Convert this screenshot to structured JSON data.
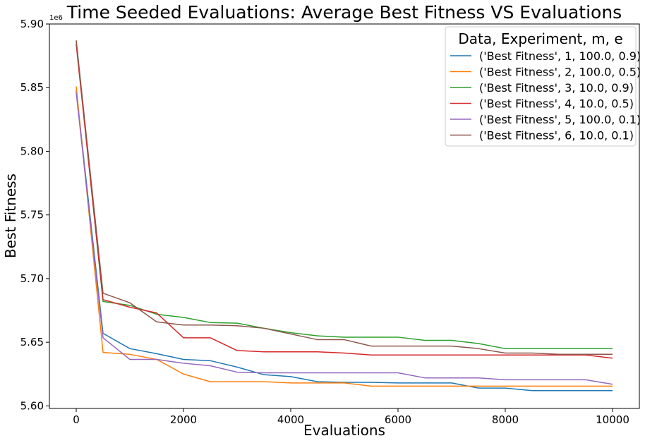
{
  "chart_data": {
    "type": "line",
    "title": "Time Seeded Evaluations: Average Best Fitness VS Evaluations",
    "xlabel": "Evaluations",
    "ylabel": "Best Fitness",
    "y_offset_label": "1e6",
    "xlim": [
      -500,
      10500
    ],
    "ylim": [
      5.598,
      5.9
    ],
    "x_ticks": [
      0,
      2000,
      4000,
      6000,
      8000,
      10000
    ],
    "x_tick_labels": [
      "0",
      "2000",
      "4000",
      "6000",
      "8000",
      "10000"
    ],
    "y_ticks": [
      5.6,
      5.65,
      5.7,
      5.75,
      5.8,
      5.85,
      5.9
    ],
    "y_tick_labels": [
      "5.60",
      "5.65",
      "5.70",
      "5.75",
      "5.80",
      "5.85",
      "5.90"
    ],
    "grid": false,
    "legend": {
      "title": "Data, Experiment, m, e",
      "placement": "top-right"
    },
    "x": [
      0,
      500,
      1000,
      1500,
      2000,
      2500,
      3000,
      3500,
      4000,
      4500,
      5000,
      5500,
      6000,
      6500,
      7000,
      7500,
      8000,
      8500,
      9000,
      9500,
      10000
    ],
    "series": [
      {
        "name": "('Best Fitness', 1, 100.0, 0.9)",
        "color": "#1f77b4",
        "values": [
          5.848,
          5.657,
          5.645,
          5.641,
          5.6365,
          5.6355,
          5.6305,
          5.6245,
          5.623,
          5.619,
          5.6185,
          5.6185,
          5.618,
          5.618,
          5.618,
          5.614,
          5.614,
          5.612,
          5.612,
          5.612,
          5.612
        ]
      },
      {
        "name": "('Best Fitness', 2, 100.0, 0.5)",
        "color": "#ff7f0e",
        "values": [
          5.851,
          5.642,
          5.6405,
          5.6365,
          5.625,
          5.619,
          5.619,
          5.619,
          5.618,
          5.618,
          5.618,
          5.6155,
          5.6155,
          5.6155,
          5.6155,
          5.6155,
          5.6155,
          5.6155,
          5.6155,
          5.6155,
          5.6155
        ]
      },
      {
        "name": "('Best Fitness', 3, 10.0, 0.9)",
        "color": "#2ca02c",
        "values": [
          5.887,
          5.682,
          5.679,
          5.672,
          5.6695,
          5.6655,
          5.665,
          5.661,
          5.6575,
          5.655,
          5.654,
          5.654,
          5.654,
          5.6515,
          5.6515,
          5.649,
          5.645,
          5.645,
          5.645,
          5.645,
          5.645
        ]
      },
      {
        "name": "('Best Fitness', 4, 10.0, 0.5)",
        "color": "#d62728",
        "values": [
          5.884,
          5.6835,
          5.6775,
          5.673,
          5.6535,
          5.6535,
          5.6435,
          5.6425,
          5.6425,
          5.6425,
          5.6415,
          5.64,
          5.64,
          5.64,
          5.64,
          5.64,
          5.64,
          5.64,
          5.64,
          5.64,
          5.6375
        ]
      },
      {
        "name": "('Best Fitness', 5, 100.0, 0.1)",
        "color": "#9467bd",
        "values": [
          5.846,
          5.6535,
          5.6365,
          5.6365,
          5.6335,
          5.6315,
          5.6265,
          5.626,
          5.626,
          5.626,
          5.626,
          5.626,
          5.626,
          5.622,
          5.622,
          5.622,
          5.6205,
          5.6205,
          5.6205,
          5.6205,
          5.617
        ]
      },
      {
        "name": "('Best Fitness', 6, 10.0, 0.1)",
        "color": "#8c564b",
        "values": [
          5.887,
          5.6885,
          5.681,
          5.666,
          5.6635,
          5.6635,
          5.663,
          5.661,
          5.6565,
          5.652,
          5.652,
          5.647,
          5.647,
          5.647,
          5.647,
          5.645,
          5.6415,
          5.6415,
          5.6405,
          5.6405,
          5.6405
        ]
      }
    ]
  }
}
